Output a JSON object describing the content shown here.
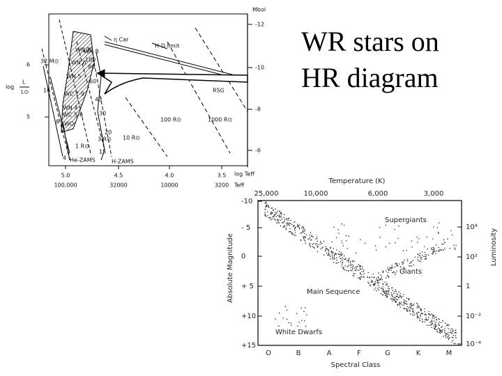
{
  "slide": {
    "title": "WR stars on HR diagram"
  },
  "diagram1": {
    "right_axis_label": "Mbol",
    "right_ticks": [
      "-12",
      "-10",
      "-8",
      "-6"
    ],
    "left_axis_label": [
      "log",
      "L",
      "L⊙"
    ],
    "left_ticks": [
      "6",
      "5"
    ],
    "bottom_ticks": [
      "5.0",
      "4.5",
      "4.0",
      "3.5"
    ],
    "bottom_axis_label": "log Teff",
    "temperature_ticks": [
      "100,000",
      "32000",
      "10000",
      "3200"
    ],
    "temperature_label": "Teff",
    "track_masses": [
      "32 M⊙",
      "16",
      "8",
      "4",
      "120",
      "100",
      "80",
      "60",
      "40",
      "30",
      "20",
      "15"
    ],
    "radius_labels": [
      "1 R⊙",
      "3 R⊙",
      "10 R⊙",
      "100 R⊙",
      "1000 R⊙"
    ],
    "annotations": [
      "η Car",
      "H-D limit",
      "RSG",
      "He-ZAMS",
      "H-ZAMS"
    ],
    "wr_types": [
      "WN 7",
      "WN 8",
      "WN 6",
      "WN 5",
      "WC 7-9",
      "WN 4",
      "WC 5-6",
      "WO"
    ]
  },
  "diagram2": {
    "top_axis_label": "Temperature (K)",
    "top_ticks": [
      "25,000",
      "10,000",
      "6,000",
      "3,000"
    ],
    "left_axis_label": "Absolute Magnitude",
    "left_ticks": [
      "-10",
      "- 5",
      "0",
      "+ 5",
      "+10",
      "+15"
    ],
    "right_axis_label": "Luminosity",
    "right_ticks": [
      "10⁴",
      "10²",
      "1",
      "10⁻²",
      "10⁻⁴"
    ],
    "bottom_ticks": [
      "O",
      "B",
      "A",
      "F",
      "G",
      "K",
      "M"
    ],
    "bottom_axis_label": "Spectral Class",
    "regions": [
      "Supergiants",
      "Giants",
      "Main Sequence",
      "White Dwarfs"
    ]
  }
}
